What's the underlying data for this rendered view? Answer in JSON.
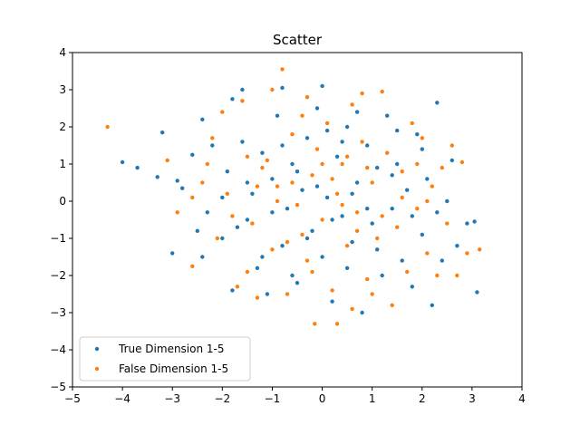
{
  "chart_data": {
    "type": "scatter",
    "title": "Scatter",
    "xlabel": "",
    "ylabel": "",
    "xlim": [
      -5,
      4
    ],
    "ylim": [
      -5,
      4
    ],
    "xticks": [
      "−5",
      "−4",
      "−3",
      "−2",
      "−1",
      "0",
      "1",
      "2",
      "3",
      "4"
    ],
    "yticks": [
      "−5",
      "−4",
      "−3",
      "−2",
      "−1",
      "0",
      "1",
      "2",
      "3",
      "4"
    ],
    "grid": false,
    "legend_position": "lower-left",
    "series": [
      {
        "name": "True Dimension 1-5",
        "color": "#1f77b4",
        "points": [
          [
            -4.0,
            1.05
          ],
          [
            -3.7,
            0.9
          ],
          [
            -3.3,
            0.65
          ],
          [
            -3.2,
            1.85
          ],
          [
            -3.0,
            -1.4
          ],
          [
            -2.8,
            0.35
          ],
          [
            -2.6,
            1.25
          ],
          [
            -2.4,
            2.2
          ],
          [
            -2.3,
            -0.3
          ],
          [
            -2.2,
            1.5
          ],
          [
            -2.0,
            -1.0
          ],
          [
            -1.9,
            0.8
          ],
          [
            -1.8,
            2.75
          ],
          [
            -1.8,
            -2.4
          ],
          [
            -1.6,
            1.6
          ],
          [
            -1.6,
            3.0
          ],
          [
            -1.5,
            -0.5
          ],
          [
            -1.4,
            0.2
          ],
          [
            -1.3,
            -1.8
          ],
          [
            -1.2,
            1.3
          ],
          [
            -1.1,
            -2.5
          ],
          [
            -1.0,
            0.6
          ],
          [
            -0.9,
            2.3
          ],
          [
            -0.8,
            3.05
          ],
          [
            -0.8,
            -1.2
          ],
          [
            -0.7,
            -0.2
          ],
          [
            -0.6,
            1.0
          ],
          [
            -0.5,
            -2.2
          ],
          [
            -0.4,
            0.3
          ],
          [
            -0.3,
            1.7
          ],
          [
            -0.2,
            -0.8
          ],
          [
            -0.1,
            2.5
          ],
          [
            0.0,
            3.1
          ],
          [
            0.0,
            -1.5
          ],
          [
            0.1,
            0.1
          ],
          [
            0.2,
            -2.7
          ],
          [
            0.3,
            1.2
          ],
          [
            0.4,
            -0.4
          ],
          [
            0.5,
            2.0
          ],
          [
            0.6,
            -1.1
          ],
          [
            0.7,
            0.5
          ],
          [
            0.8,
            -3.0
          ],
          [
            0.9,
            1.5
          ],
          [
            1.0,
            -0.6
          ],
          [
            1.1,
            0.9
          ],
          [
            1.2,
            -2.0
          ],
          [
            1.3,
            2.3
          ],
          [
            1.4,
            -0.2
          ],
          [
            1.5,
            1.0
          ],
          [
            1.6,
            -1.6
          ],
          [
            1.7,
            0.3
          ],
          [
            1.8,
            -2.3
          ],
          [
            1.9,
            1.8
          ],
          [
            2.0,
            -0.9
          ],
          [
            2.1,
            0.6
          ],
          [
            2.2,
            -2.8
          ],
          [
            2.3,
            2.65
          ],
          [
            2.4,
            -1.6
          ],
          [
            2.5,
            0.0
          ],
          [
            2.6,
            1.1
          ],
          [
            2.7,
            -1.2
          ],
          [
            2.9,
            -0.6
          ],
          [
            3.05,
            -0.55
          ],
          [
            3.1,
            -2.45
          ],
          [
            -1.0,
            -0.3
          ],
          [
            -0.5,
            0.8
          ],
          [
            0.2,
            -0.5
          ],
          [
            0.6,
            0.2
          ],
          [
            -0.3,
            -1.0
          ],
          [
            0.9,
            -0.2
          ],
          [
            -1.5,
            0.5
          ],
          [
            1.4,
            0.7
          ],
          [
            -0.8,
            1.5
          ],
          [
            0.5,
            -1.8
          ],
          [
            -2.5,
            -0.8
          ],
          [
            2.0,
            1.4
          ],
          [
            -0.1,
            0.4
          ],
          [
            0.4,
            1.6
          ],
          [
            -1.2,
            -1.5
          ],
          [
            1.1,
            -1.3
          ],
          [
            -2.0,
            0.1
          ],
          [
            1.8,
            -0.4
          ],
          [
            -0.6,
            -2.0
          ],
          [
            0.7,
            2.4
          ],
          [
            -2.9,
            0.55
          ],
          [
            -2.4,
            -1.5
          ],
          [
            2.3,
            -0.3
          ],
          [
            0.1,
            1.9
          ],
          [
            -1.7,
            -0.7
          ],
          [
            1.5,
            1.9
          ]
        ]
      },
      {
        "name": "False Dimension 1-5",
        "color": "#ff7f0e",
        "points": [
          [
            -4.3,
            2.0
          ],
          [
            -3.1,
            1.1
          ],
          [
            -2.9,
            -0.3
          ],
          [
            -2.6,
            -1.75
          ],
          [
            -2.4,
            0.5
          ],
          [
            -2.2,
            1.7
          ],
          [
            -2.1,
            -1.0
          ],
          [
            -2.0,
            2.4
          ],
          [
            -1.9,
            0.2
          ],
          [
            -1.7,
            -2.3
          ],
          [
            -1.6,
            2.7
          ],
          [
            -1.5,
            1.2
          ],
          [
            -1.4,
            -0.6
          ],
          [
            -1.3,
            -2.6
          ],
          [
            -1.2,
            0.9
          ],
          [
            -1.0,
            3.0
          ],
          [
            -1.0,
            -1.3
          ],
          [
            -0.9,
            0.4
          ],
          [
            -0.8,
            3.55
          ],
          [
            -0.7,
            -2.5
          ],
          [
            -0.6,
            1.8
          ],
          [
            -0.5,
            -0.1
          ],
          [
            -0.4,
            2.3
          ],
          [
            -0.3,
            -1.6
          ],
          [
            -0.2,
            0.7
          ],
          [
            -0.15,
            -3.3
          ],
          [
            -0.1,
            1.4
          ],
          [
            0.0,
            -0.5
          ],
          [
            0.1,
            2.1
          ],
          [
            0.2,
            -2.4
          ],
          [
            0.3,
            0.2
          ],
          [
            0.3,
            -3.3
          ],
          [
            0.4,
            1.0
          ],
          [
            0.5,
            -1.2
          ],
          [
            0.6,
            2.6
          ],
          [
            0.7,
            -0.3
          ],
          [
            0.8,
            1.6
          ],
          [
            0.8,
            2.9
          ],
          [
            0.9,
            -2.1
          ],
          [
            1.0,
            0.5
          ],
          [
            1.1,
            -1.0
          ],
          [
            1.2,
            2.95
          ],
          [
            1.3,
            1.3
          ],
          [
            1.4,
            -2.8
          ],
          [
            1.5,
            -0.7
          ],
          [
            1.6,
            0.8
          ],
          [
            1.7,
            -1.9
          ],
          [
            1.8,
            2.1
          ],
          [
            1.9,
            -0.2
          ],
          [
            2.0,
            1.7
          ],
          [
            2.1,
            -1.4
          ],
          [
            2.2,
            0.4
          ],
          [
            2.3,
            -2.0
          ],
          [
            2.4,
            0.9
          ],
          [
            2.5,
            -0.6
          ],
          [
            2.6,
            1.5
          ],
          [
            2.7,
            -2.0
          ],
          [
            2.8,
            1.05
          ],
          [
            2.9,
            -1.4
          ],
          [
            3.15,
            -1.3
          ],
          [
            -0.9,
            0.0
          ],
          [
            -0.4,
            -0.9
          ],
          [
            0.2,
            0.6
          ],
          [
            0.7,
            -0.8
          ],
          [
            -1.1,
            1.1
          ],
          [
            1.2,
            -0.4
          ],
          [
            -0.2,
            -1.9
          ],
          [
            0.5,
            1.2
          ],
          [
            -1.8,
            -0.4
          ],
          [
            1.6,
            0.1
          ],
          [
            -0.6,
            0.5
          ],
          [
            0.0,
            1.0
          ],
          [
            -1.3,
            0.4
          ],
          [
            0.9,
            0.9
          ],
          [
            -0.7,
            -1.1
          ],
          [
            0.4,
            -0.1
          ],
          [
            -2.3,
            1.0
          ],
          [
            2.1,
            0.0
          ],
          [
            -1.5,
            -1.9
          ],
          [
            1.0,
            -2.5
          ],
          [
            -0.3,
            2.8
          ],
          [
            0.6,
            -2.9
          ],
          [
            -2.6,
            0.1
          ],
          [
            1.9,
            1.0
          ]
        ]
      }
    ]
  }
}
